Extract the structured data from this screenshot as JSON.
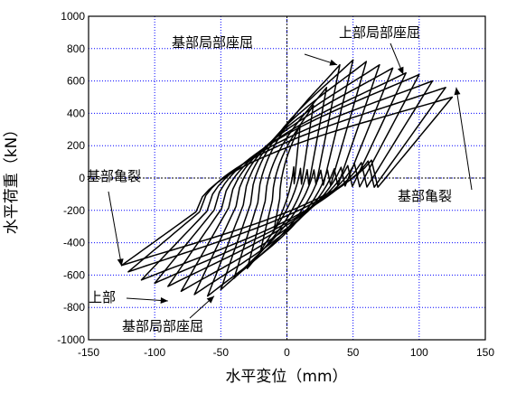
{
  "chart_data": {
    "type": "line",
    "title": "",
    "xlabel": "水平変位（mm）",
    "ylabel": "水平荷重（kN）",
    "xlim": [
      -150,
      150
    ],
    "ylim": [
      -1000,
      1000
    ],
    "x_ticks": [
      -150,
      -100,
      -50,
      0,
      50,
      100,
      150
    ],
    "y_ticks": [
      -1000,
      -800,
      -600,
      -400,
      -200,
      0,
      200,
      400,
      600,
      800,
      1000
    ],
    "grid": true,
    "grid_style": "dotted",
    "grid_color": "#0000ff",
    "line_color": "#000000",
    "annotations": [
      {
        "text": "基部局部座屈",
        "point": [
          38,
          700
        ]
      },
      {
        "text": "上部局部座屈",
        "point": [
          88,
          640
        ]
      },
      {
        "text": "基部亀裂",
        "point": [
          128,
          560
        ]
      },
      {
        "text": "基部亀裂",
        "point": [
          -125,
          -545
        ]
      },
      {
        "text": "上部",
        "point": [
          -90,
          -760
        ]
      },
      {
        "text": "基部局部座屈",
        "point": [
          -55,
          -730
        ]
      }
    ],
    "series": [
      {
        "loops": [
          {
            "amp": 10,
            "peak_pos": 330,
            "peak_neg": -330
          },
          {
            "amp": 20,
            "peak_pos": 450,
            "peak_neg": -450
          },
          {
            "amp": 30,
            "peak_pos": 560,
            "peak_neg": -560
          },
          {
            "amp": 40,
            "peak_pos": 700,
            "peak_neg": -620
          },
          {
            "amp": 50,
            "peak_pos": 730,
            "peak_neg": -690
          },
          {
            "amp": 60,
            "peak_pos": 720,
            "peak_neg": -730
          },
          {
            "amp": 70,
            "peak_pos": 700,
            "peak_neg": -720
          },
          {
            "amp": 80,
            "peak_pos": 680,
            "peak_neg": -700
          },
          {
            "amp": 90,
            "peak_pos": 650,
            "peak_neg": -670
          },
          {
            "amp": 100,
            "peak_pos": 640,
            "peak_neg": -650
          },
          {
            "amp": 110,
            "peak_pos": 600,
            "peak_neg": -630
          },
          {
            "amp": 120,
            "peak_pos": 560,
            "peak_neg": -580
          },
          {
            "amp": 125,
            "peak_pos": 500,
            "peak_neg": -540
          }
        ]
      }
    ]
  }
}
